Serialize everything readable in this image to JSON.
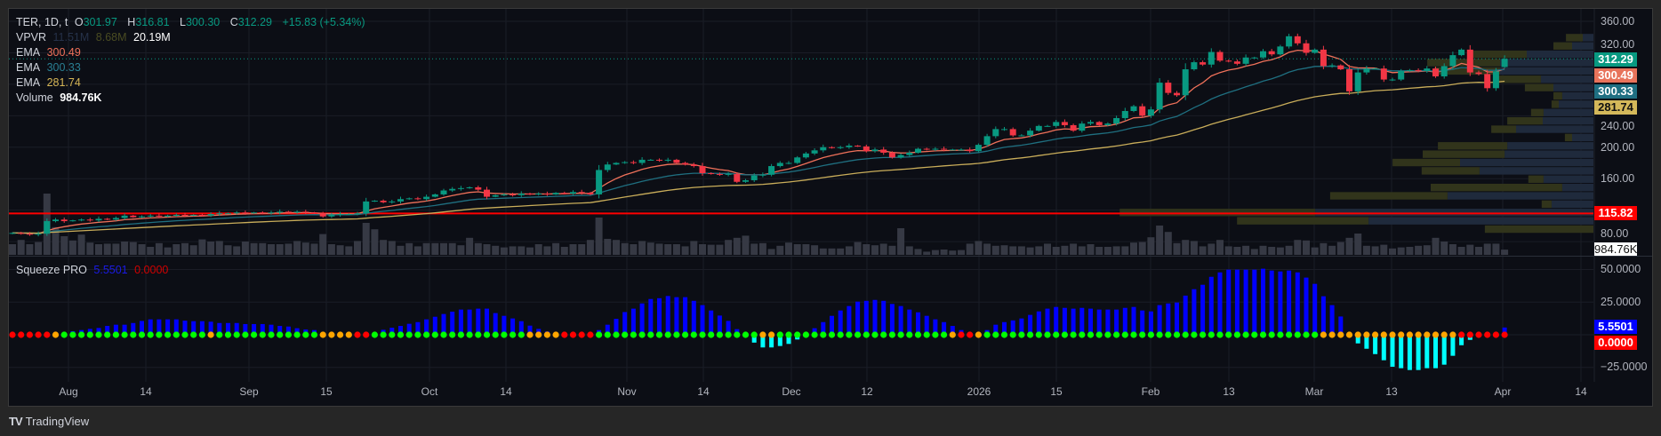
{
  "legend": {
    "symbol": "TER, 1D, t",
    "open_label": "O",
    "open": "301.97",
    "high_label": "H",
    "high": "316.81",
    "low_label": "L",
    "low": "300.30",
    "close_label": "C",
    "close": "312.29",
    "change": "+15.83 (+5.34%)",
    "vpvr_label": "VPVR",
    "vpvr_up": "11.51M",
    "vpvr_down": "8.68M",
    "vpvr_total": "20.19M",
    "ema1_label": "EMA",
    "ema1": "300.49",
    "ema2_label": "EMA",
    "ema2": "300.33",
    "ema3_label": "EMA",
    "ema3": "281.74",
    "volume_label": "Volume",
    "volume": "984.76K",
    "squeeze_label": "Squeeze PRO",
    "squeeze_value": "5.5501",
    "squeeze_signal": "0.0000"
  },
  "price_axis": [
    "360.00",
    "320.00",
    "240.00",
    "200.00",
    "160.00",
    "80.00"
  ],
  "price_tags": {
    "close": "312.29",
    "ema1": "300.49",
    "ema2": "300.33",
    "ema3": "281.74",
    "hline": "115.82",
    "volume": "984.76K"
  },
  "squeeze_axis": [
    "50.0000",
    "25.0000",
    "−25.0000"
  ],
  "squeeze_tags": {
    "value": "5.5501",
    "signal": "0.0000"
  },
  "time_axis": [
    "Aug",
    "14",
    "Sep",
    "15",
    "Oct",
    "14",
    "Nov",
    "14",
    "Dec",
    "12",
    "2026",
    "15",
    "Feb",
    "13",
    "Mar",
    "13",
    "Apr",
    "14"
  ],
  "footer": {
    "brand": "TradingView",
    "logo": "TV"
  },
  "colors": {
    "up": "#089981",
    "down": "#f23645",
    "ema1": "#f0715a",
    "ema2": "#1f6f80",
    "ema3": "#c9ad5a",
    "hline": "#ff0000",
    "sq_pos": "#0000ff",
    "sq_neg": "#00ffff",
    "dot_green": "#00ff00",
    "dot_orange": "#ffa500",
    "dot_red": "#ff0000"
  },
  "chart_data": [
    {
      "type": "candlestick",
      "title": "TER, 1D",
      "ylim": [
        80,
        360
      ],
      "y_ticks": [
        360,
        320,
        240,
        200,
        160,
        80
      ],
      "last_bar": {
        "open": 301.97,
        "high": 316.81,
        "low": 300.3,
        "close": 312.29
      },
      "closes": [
        91,
        90,
        89,
        90,
        106,
        108,
        106,
        107,
        108,
        107,
        109,
        108,
        110,
        113,
        111,
        112,
        113,
        112,
        113,
        114,
        113,
        114,
        113,
        115,
        116,
        116,
        117,
        116,
        117,
        116,
        117,
        118,
        117,
        118,
        117,
        116,
        112,
        114,
        115,
        115,
        116,
        131,
        132,
        130,
        131,
        134,
        135,
        134,
        137,
        140,
        145,
        147,
        148,
        149,
        146,
        137,
        139,
        140,
        139,
        141,
        140,
        141,
        140,
        142,
        141,
        143,
        142,
        140,
        171,
        178,
        180,
        181,
        180,
        184,
        184,
        183,
        184,
        180,
        178,
        176,
        167,
        166,
        165,
        166,
        156,
        158,
        164,
        165,
        176,
        180,
        180,
        187,
        192,
        196,
        200,
        199,
        200,
        202,
        201,
        195,
        197,
        193,
        187,
        190,
        193,
        198,
        197,
        198,
        197,
        197,
        197,
        195,
        203,
        214,
        223,
        223,
        215,
        215,
        221,
        227,
        227,
        232,
        228,
        221,
        230,
        232,
        228,
        230,
        237,
        246,
        252,
        240,
        248,
        282,
        269,
        266,
        299,
        308,
        305,
        321,
        310,
        309,
        306,
        314,
        314,
        322,
        318,
        328,
        341,
        332,
        320,
        324,
        303,
        304,
        299,
        271,
        295,
        300,
        300,
        286,
        286,
        297,
        298,
        297,
        300,
        290,
        303,
        317,
        324,
        295,
        293,
        275,
        296.46,
        312.29
      ],
      "ema_values_last": [
        300.49,
        300.33,
        281.74
      ],
      "horizontal_line": 115.82
    },
    {
      "type": "bar",
      "name": "Volume",
      "unit": "M",
      "values": [
        2.0,
        2.8,
        2.0,
        2.4,
        11.5,
        5.2,
        3.5,
        2.7,
        3.8,
        2.3,
        2.0,
        2.1,
        2.1,
        2.5,
        2.4,
        2.0,
        1.5,
        2.2,
        1.4,
        2.0,
        2.2,
        1.8,
        2.9,
        2.5,
        2.6,
        1.8,
        1.6,
        2.5,
        2.2,
        2.2,
        2.0,
        2.0,
        2.1,
        2.6,
        2.3,
        2.1,
        3.9,
        2.0,
        1.8,
        1.6,
        2.6,
        6.0,
        4.8,
        2.8,
        2.6,
        1.7,
        2.2,
        1.6,
        2.2,
        2.2,
        2.2,
        2.2,
        1.8,
        3.2,
        2.2,
        2.0,
        1.7,
        1.4,
        1.6,
        1.6,
        1.4,
        2.0,
        1.6,
        2.2,
        1.5,
        2.0,
        2.0,
        2.8,
        7.0,
        3.0,
        2.8,
        2.2,
        2.0,
        2.6,
        2.3,
        2.1,
        2.0,
        2.0,
        1.6,
        2.6,
        2.0,
        1.9,
        1.9,
        2.8,
        3.2,
        3.6,
        2.1,
        2.2,
        1.1,
        1.7,
        2.3,
        2.0,
        2.0,
        1.8,
        1.2,
        1.2,
        1.2,
        1.6,
        2.4,
        2.0,
        1.8,
        2.1,
        1.7,
        5.0,
        1.6,
        1.1,
        0.6,
        0.9,
        1.0,
        0.8,
        0.9,
        2.1,
        2.6,
        2.1,
        1.7,
        1.8,
        1.6,
        1.6,
        1.4,
        1.6,
        2.1,
        1.5,
        1.7,
        2.1,
        1.6,
        2.0,
        1.5,
        1.5,
        1.6,
        1.6,
        2.3,
        2.4,
        3.3,
        5.5,
        4.3,
        2.2,
        2.8,
        2.6,
        1.6,
        2.1,
        2.8,
        1.6,
        1.5,
        1.7,
        1.1,
        1.7,
        1.5,
        1.4,
        1.7,
        2.8,
        2.7,
        1.4,
        2.2,
        1.7,
        2.4,
        3.2,
        4.0,
        1.7,
        1.6,
        1.9,
        1.2,
        1.4,
        1.5,
        1.7,
        1.8,
        3.2,
        2.5,
        2.0,
        1.5,
        1.9,
        1.5,
        2.1,
        2.1,
        0.98
      ]
    },
    {
      "type": "bar",
      "name": "VPVR",
      "price_range": [
        90,
        344
      ],
      "rows_top_to_bottom": [
        {
          "up": 4,
          "down": 6.3
        },
        {
          "up": 8,
          "down": 7
        },
        {
          "up": 25,
          "down": 21.7
        },
        {
          "up": 35,
          "down": 27.3
        },
        {
          "up": 35,
          "down": 24.7
        },
        {
          "up": 19.7,
          "down": 17.7
        },
        {
          "up": 15,
          "down": 10.7
        },
        {
          "up": 11.7,
          "down": 3.3
        },
        {
          "up": 13,
          "down": 2.7
        },
        {
          "up": 18.7,
          "down": 4.7
        },
        {
          "up": 19,
          "down": 13.3
        },
        {
          "up": 29,
          "down": 9.3
        },
        {
          "up": 8,
          "down": 2.7
        },
        {
          "up": 32.3,
          "down": 26
        },
        {
          "up": 33.3,
          "down": 30.7
        },
        {
          "up": 50,
          "down": 25.3
        },
        {
          "up": 42.7,
          "down": 21.7
        },
        {
          "up": 18.7,
          "down": 5.7
        },
        {
          "up": 11.7,
          "down": 49.3
        },
        {
          "up": 54.7,
          "down": 44
        },
        {
          "up": 15.7,
          "down": 3.7
        },
        {
          "up": 104.3,
          "down": 73.3
        },
        {
          "up": 84.3,
          "down": 49.3
        },
        {
          "up": 0,
          "down": 40.7
        }
      ]
    },
    {
      "type": "bar",
      "name": "Squeeze PRO",
      "ylim": [
        -30,
        55
      ],
      "y_ticks": [
        50,
        25,
        -25
      ],
      "values": [
        0,
        0,
        0,
        0,
        0,
        0,
        0,
        2.7,
        3.6,
        4.5,
        5.2,
        6.8,
        7.7,
        7.7,
        9,
        10.6,
        11.8,
        11.8,
        11.8,
        11.8,
        10.8,
        10.4,
        10.4,
        10,
        9,
        9,
        9,
        8.2,
        8.2,
        8.2,
        7.7,
        6.8,
        6.3,
        5,
        4,
        3.6,
        0,
        0,
        0,
        0,
        0,
        0,
        0,
        3.8,
        5.4,
        6.8,
        8.4,
        9.7,
        11.8,
        13.8,
        15.9,
        17.7,
        19.3,
        19.3,
        20,
        20,
        16.6,
        14.5,
        12.5,
        10.4,
        7,
        4.5,
        2.5,
        1,
        0,
        0,
        0,
        0,
        3.6,
        7.7,
        12.2,
        17.4,
        20,
        24,
        27.4,
        28,
        29.7,
        28.8,
        28.8,
        26,
        22.7,
        18.6,
        14.7,
        10.6,
        4.3,
        0,
        -6,
        -9.7,
        -9.7,
        -8.6,
        -7,
        -3.6,
        0,
        5,
        9.7,
        14.5,
        18.6,
        22,
        25.4,
        26,
        26.7,
        26,
        23.6,
        22,
        19.3,
        17.2,
        14.5,
        11.8,
        9.7,
        6.8,
        3.6,
        0,
        0,
        3.6,
        7.7,
        9.7,
        11,
        12.5,
        15.2,
        17.9,
        20,
        21.3,
        20.6,
        20,
        20.6,
        20,
        19.3,
        19.3,
        19.3,
        20.6,
        21.3,
        18.6,
        17.9,
        22.7,
        24,
        24.7,
        30,
        34.9,
        38.3,
        44.4,
        47.8,
        49.9,
        49.9,
        49.9,
        49.9,
        50.6,
        49.2,
        48.5,
        49.2,
        47.8,
        43.8,
        39,
        29.5,
        22.7,
        14,
        0.5,
        -6.6,
        -10.7,
        -14.8,
        -19.5,
        -24.5,
        -25.6,
        -27,
        -27,
        -25.6,
        -25.6,
        -22.9,
        -16.1,
        -8,
        -3.9,
        0,
        0,
        0,
        5.5501
      ],
      "squeeze_dots_runs": [
        [
          "red",
          5
        ],
        [
          "orange",
          1
        ],
        [
          "green",
          17
        ],
        [
          "orange",
          1
        ],
        [
          "green",
          12
        ],
        [
          "orange",
          4
        ],
        [
          "red",
          2
        ],
        [
          "green",
          18
        ],
        [
          "orange",
          4
        ],
        [
          "red",
          4
        ],
        [
          "green",
          19
        ],
        [
          "orange",
          2
        ],
        [
          "green",
          20
        ],
        [
          "orange",
          1
        ],
        [
          "red",
          2
        ],
        [
          "orange",
          1
        ],
        [
          "green",
          39
        ],
        [
          "orange",
          16
        ],
        [
          "red",
          6
        ]
      ]
    }
  ]
}
